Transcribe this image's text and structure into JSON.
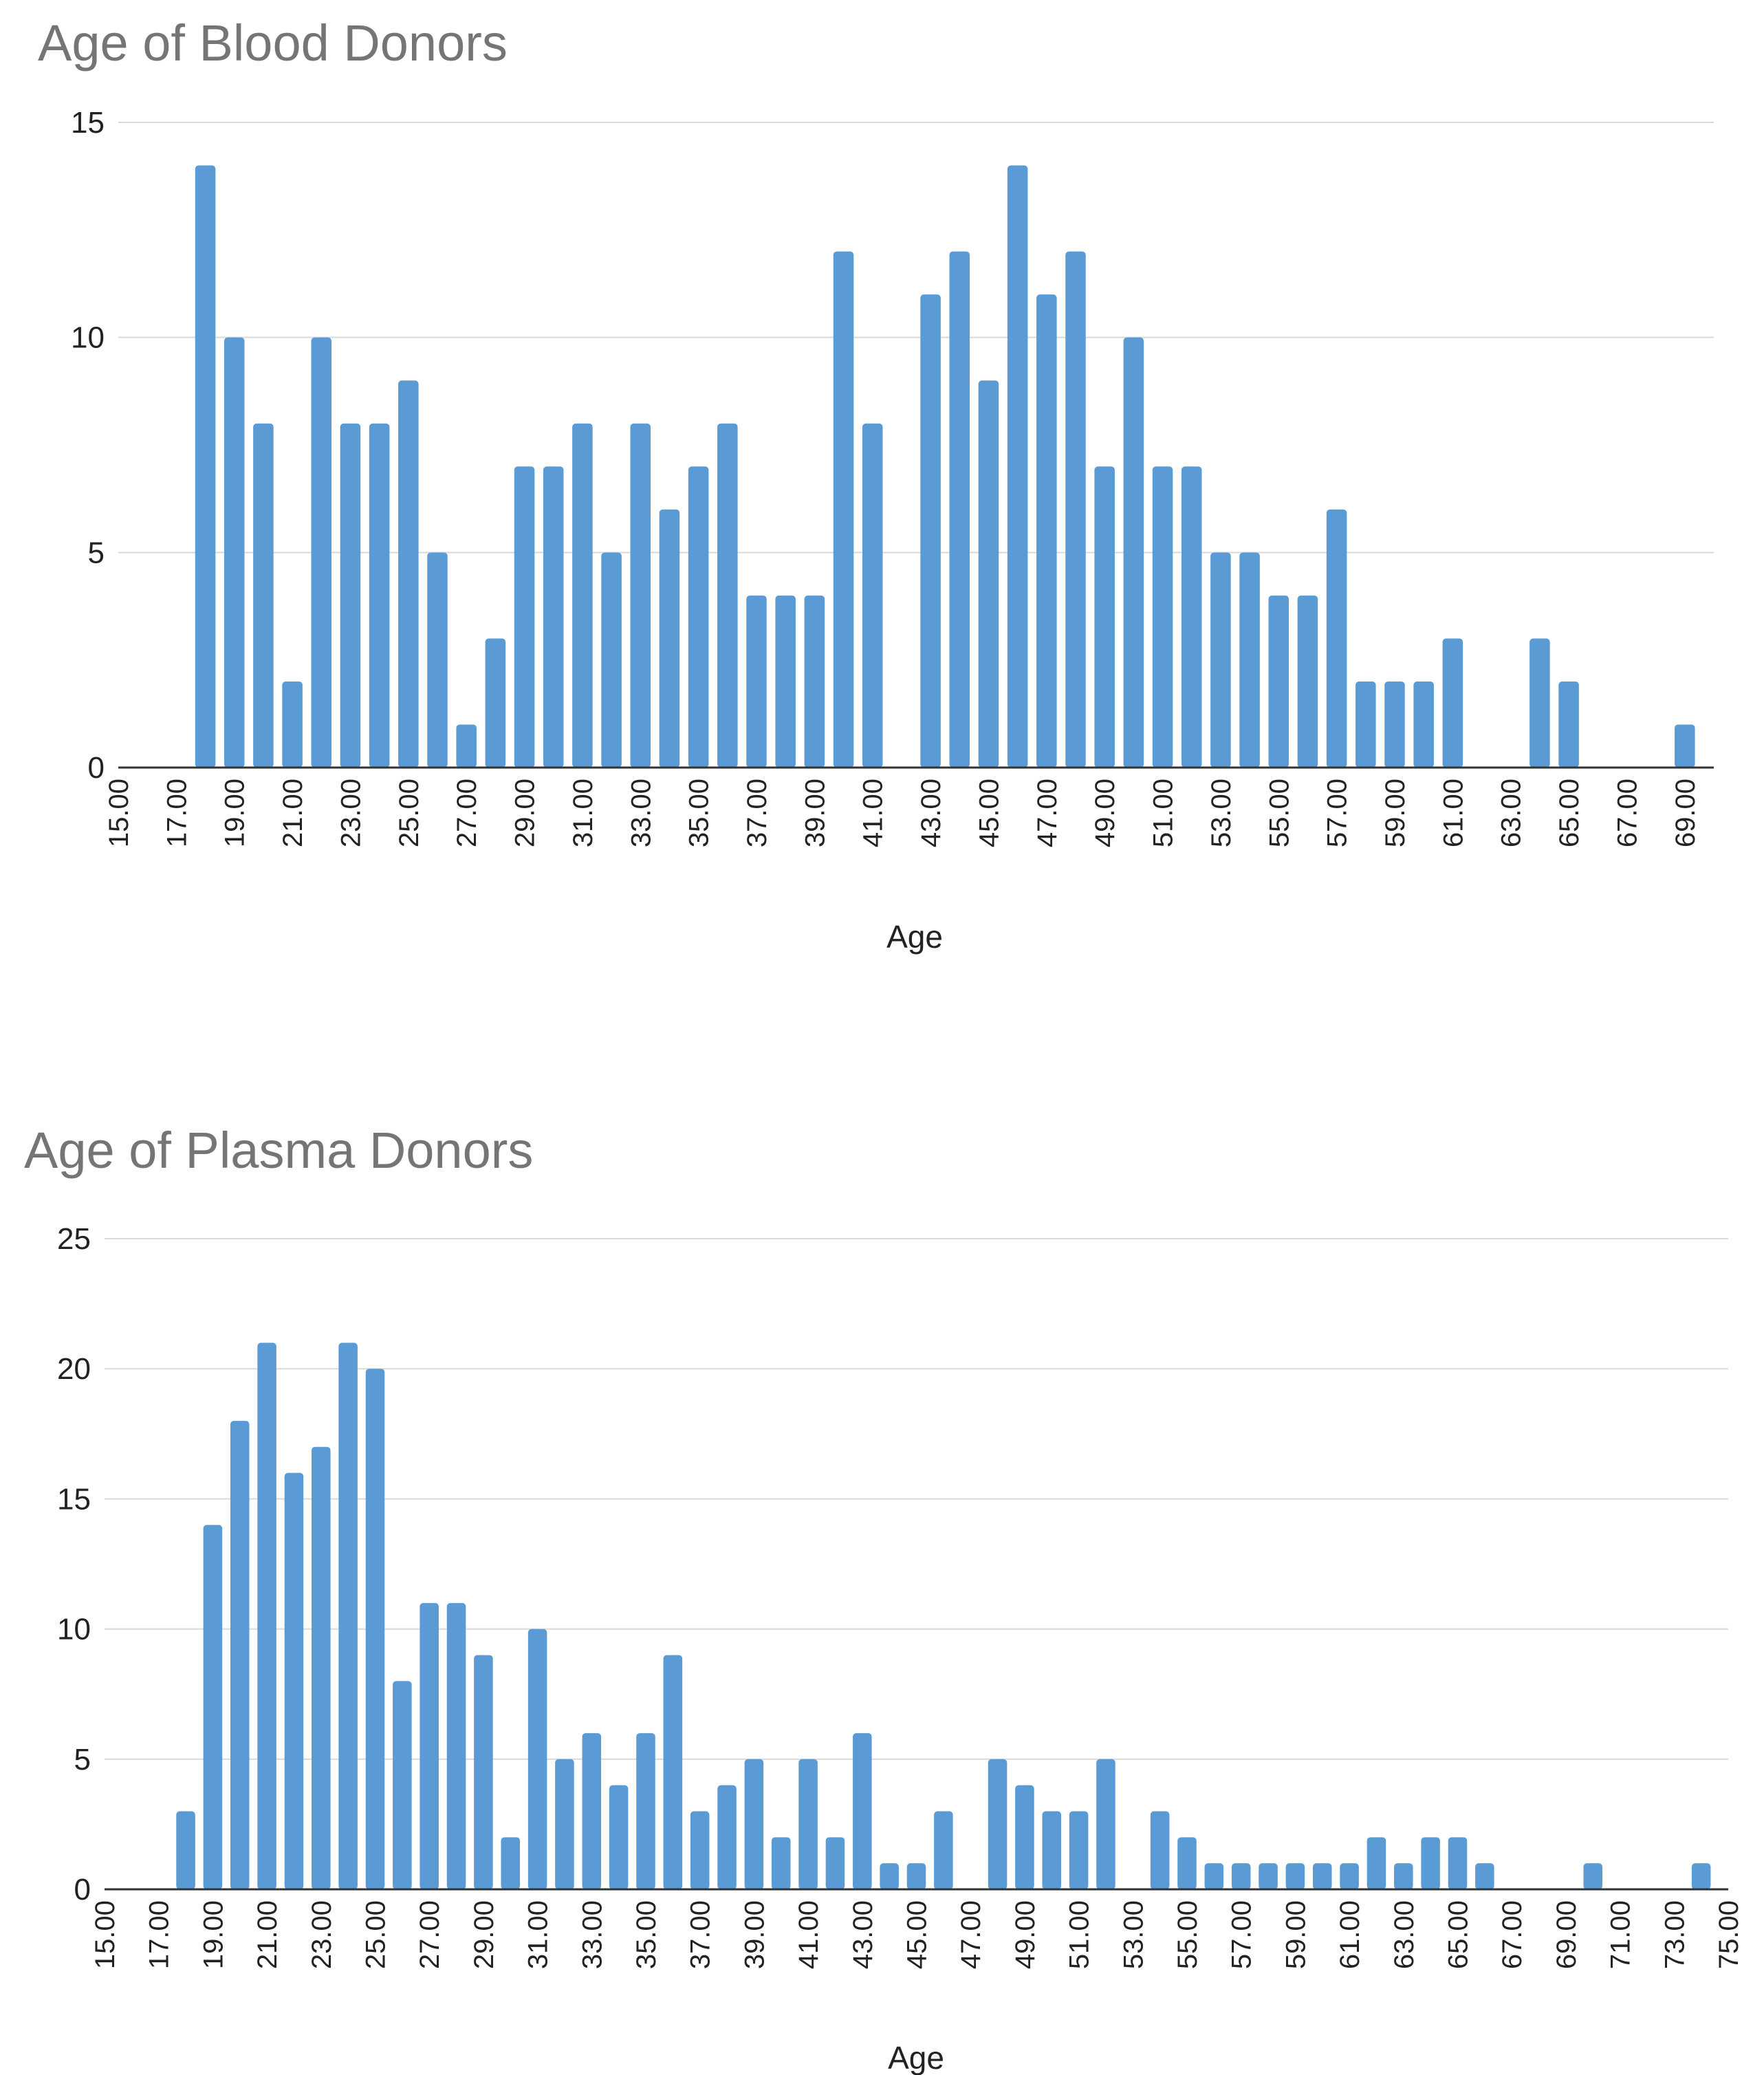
{
  "colors": {
    "bar": "#5b9bd5",
    "grid": "#d9d9d9",
    "axis": "#333333"
  },
  "chart_data": [
    {
      "type": "bar",
      "title": "Age of Blood Donors",
      "xlabel": "Age",
      "ylabel": "",
      "ylim": [
        0,
        15
      ],
      "yticks": [
        0,
        5,
        10,
        15
      ],
      "xlim": [
        15,
        70
      ],
      "xticks": [
        "15.00",
        "17.00",
        "19.00",
        "21.00",
        "23.00",
        "25.00",
        "27.00",
        "29.00",
        "31.00",
        "33.00",
        "35.00",
        "37.00",
        "39.00",
        "41.00",
        "43.00",
        "45.00",
        "47.00",
        "49.00",
        "51.00",
        "53.00",
        "55.00",
        "57.00",
        "59.00",
        "61.00",
        "63.00",
        "65.00",
        "67.00",
        "69.00"
      ],
      "x": [
        18,
        19,
        20,
        21,
        22,
        23,
        24,
        25,
        26,
        27,
        28,
        29,
        30,
        31,
        32,
        33,
        34,
        35,
        36,
        37,
        38,
        39,
        40,
        41,
        43,
        44,
        45,
        46,
        47,
        48,
        49,
        50,
        51,
        52,
        53,
        54,
        55,
        56,
        57,
        58,
        59,
        60,
        61,
        64,
        65,
        69
      ],
      "values": [
        14,
        10,
        8,
        2,
        10,
        8,
        8,
        9,
        5,
        1,
        3,
        7,
        7,
        8,
        5,
        8,
        6,
        7,
        8,
        4,
        4,
        4,
        12,
        8,
        11,
        12,
        9,
        14,
        11,
        12,
        7,
        10,
        7,
        7,
        5,
        5,
        4,
        4,
        6,
        2,
        2,
        2,
        3,
        3,
        2,
        1
      ]
    },
    {
      "type": "bar",
      "title": "Age of Plasma Donors",
      "xlabel": "Age",
      "ylabel": "",
      "ylim": [
        0,
        25
      ],
      "yticks": [
        0,
        5,
        10,
        15,
        20,
        25
      ],
      "xlim": [
        15,
        75
      ],
      "xticks": [
        "15.00",
        "17.00",
        "19.00",
        "21.00",
        "23.00",
        "25.00",
        "27.00",
        "29.00",
        "31.00",
        "33.00",
        "35.00",
        "37.00",
        "39.00",
        "41.00",
        "43.00",
        "45.00",
        "47.00",
        "49.00",
        "51.00",
        "53.00",
        "55.00",
        "57.00",
        "59.00",
        "61.00",
        "63.00",
        "65.00",
        "67.00",
        "69.00",
        "71.00",
        "73.00",
        "75.00"
      ],
      "x": [
        18,
        19,
        20,
        21,
        22,
        23,
        24,
        25,
        26,
        27,
        28,
        29,
        30,
        31,
        32,
        33,
        34,
        35,
        36,
        37,
        38,
        39,
        40,
        41,
        42,
        43,
        44,
        45,
        46,
        48,
        49,
        50,
        51,
        52,
        54,
        55,
        56,
        57,
        58,
        59,
        60,
        61,
        62,
        63,
        64,
        65,
        66,
        70,
        74
      ],
      "values": [
        3,
        14,
        18,
        21,
        16,
        17,
        21,
        20,
        8,
        11,
        11,
        9,
        2,
        10,
        5,
        6,
        4,
        6,
        9,
        3,
        4,
        5,
        2,
        5,
        2,
        6,
        1,
        1,
        3,
        5,
        4,
        3,
        3,
        5,
        3,
        2,
        1,
        1,
        1,
        1,
        1,
        1,
        2,
        1,
        2,
        2,
        1,
        1,
        1
      ]
    }
  ]
}
